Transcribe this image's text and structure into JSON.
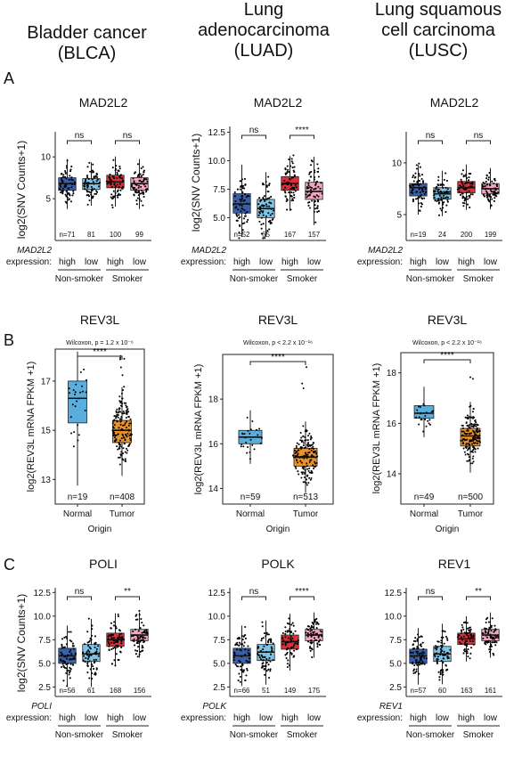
{
  "columns": [
    {
      "line1": "Bladder cancer",
      "line2": "(BLCA)",
      "line3": ""
    },
    {
      "line1": "Lung",
      "line2": "adenocarcinoma",
      "line3": "(LUAD)"
    },
    {
      "line1": "Lung squamous",
      "line2": "cell carcinoma",
      "line3": "(LUSC)"
    }
  ],
  "section_labels": [
    "A",
    "B",
    "C"
  ],
  "colors": {
    "nonsmoker_high": "#3a5fa8",
    "nonsmoker_low": "#7cc5e8",
    "smoker_high": "#d9313c",
    "smoker_low": "#f2a6bd",
    "normal": "#5aaede",
    "tumor": "#e8912f"
  },
  "section_A": {
    "ylabel": "log2(SNV Counts+1)",
    "gene_label": "expression:",
    "group_labels": [
      "Non-smoker",
      "Smoker"
    ],
    "levels": [
      "high",
      "low",
      "high",
      "low"
    ],
    "panels": [
      {
        "title": "MAD2L2",
        "gene": "MAD2L2",
        "counts": [
          "n=71",
          "81",
          "100",
          "99"
        ],
        "sig": [
          "ns",
          "ns"
        ],
        "yticks": [
          "5",
          "10"
        ]
      },
      {
        "title": "MAD2L2",
        "gene": "MAD2L2",
        "counts": [
          "n=52",
          "65",
          "167",
          "157"
        ],
        "sig": [
          "ns",
          "****"
        ],
        "yticks": [
          "5.0",
          "7.5",
          "10.0",
          "12.5"
        ]
      },
      {
        "title": "MAD2L2",
        "gene": "MAD2L2",
        "counts": [
          "n=19",
          "24",
          "200",
          "199"
        ],
        "sig": [
          "ns",
          "ns"
        ],
        "yticks": [
          "5",
          "10"
        ]
      }
    ]
  },
  "section_B": {
    "ylabel": "log2(REV3L mRNA FPKM +1)",
    "xlabel": "Origin",
    "categories": [
      "Normal",
      "Tumor"
    ],
    "panels": [
      {
        "title": "REV3L",
        "stat": "Wilcoxon, p = 1.2 x 10⁻⁶",
        "sig": "****",
        "counts": [
          "n=19",
          "n=408"
        ],
        "yticks": [
          "13",
          "15",
          "17"
        ]
      },
      {
        "title": "REV3L",
        "stat": "Wilcoxon, p < 2.2 x 10⁻¹⁶",
        "sig": "****",
        "counts": [
          "n=59",
          "n=513"
        ],
        "yticks": [
          "14",
          "16",
          "18"
        ]
      },
      {
        "title": "REV3L",
        "stat": "Wilcoxon, p < 2.2 x 10⁻¹⁶",
        "sig": "****",
        "counts": [
          "n=49",
          "n=500"
        ],
        "yticks": [
          "14",
          "16",
          "18"
        ]
      }
    ]
  },
  "section_C": {
    "ylabel": "log2(SNV Counts+1)",
    "gene_label": "expression:",
    "group_labels": [
      "Non-smoker",
      "Smoker"
    ],
    "levels": [
      "high",
      "low",
      "high",
      "low"
    ],
    "panels": [
      {
        "title": "POLI",
        "gene": "POLI",
        "counts": [
          "n=56",
          "61",
          "168",
          "156"
        ],
        "sig": [
          "ns",
          "**"
        ],
        "yticks": [
          "2.5",
          "5.0",
          "7.5",
          "10.0",
          "12.5"
        ]
      },
      {
        "title": "POLK",
        "gene": "POLK",
        "counts": [
          "n=66",
          "51",
          "149",
          "175"
        ],
        "sig": [
          "ns",
          "****"
        ],
        "yticks": [
          "2.5",
          "5.0",
          "7.5",
          "10.0",
          "12.5"
        ]
      },
      {
        "title": "REV1",
        "gene": "REV1",
        "counts": [
          "n=57",
          "60",
          "163",
          "161"
        ],
        "sig": [
          "ns",
          "**"
        ],
        "yticks": [
          "2.5",
          "5.0",
          "7.5",
          "10.0",
          "12.5"
        ]
      }
    ]
  },
  "chart_data": [
    {
      "type": "box",
      "panel": "A1",
      "title": "MAD2L2",
      "ylabel": "log2(SNV Counts+1)",
      "categories": [
        "Non-smoker high",
        "Non-smoker low",
        "Smoker high",
        "Smoker low"
      ],
      "ylim": [
        0,
        13
      ],
      "medians": [
        6.8,
        6.8,
        7.0,
        6.8
      ],
      "q1": [
        6.0,
        6.1,
        6.3,
        6.0
      ],
      "q3": [
        7.5,
        7.4,
        7.8,
        7.5
      ]
    },
    {
      "type": "box",
      "panel": "A2",
      "title": "MAD2L2",
      "ylabel": "log2(SNV Counts+1)",
      "categories": [
        "Non-smoker high",
        "Non-smoker low",
        "Smoker high",
        "Smoker low"
      ],
      "ylim": [
        3,
        13
      ],
      "medians": [
        6.2,
        5.8,
        8.0,
        7.3
      ],
      "q1": [
        5.4,
        5.0,
        7.4,
        6.6
      ],
      "q3": [
        7.1,
        6.6,
        8.6,
        8.1
      ]
    },
    {
      "type": "box",
      "panel": "A3",
      "title": "MAD2L2",
      "ylabel": "log2(SNV Counts+1)",
      "categories": [
        "Non-smoker high",
        "Non-smoker low",
        "Smoker high",
        "Smoker low"
      ],
      "ylim": [
        2.5,
        13
      ],
      "medians": [
        7.6,
        7.0,
        7.6,
        7.5
      ],
      "q1": [
        6.8,
        6.5,
        7.1,
        7.0
      ],
      "q3": [
        8.0,
        7.6,
        8.2,
        8.0
      ]
    },
    {
      "type": "box",
      "panel": "B1",
      "title": "REV3L",
      "ylabel": "log2(REV3L mRNA FPKM +1)",
      "xlabel": "Origin",
      "categories": [
        "Normal",
        "Tumor"
      ],
      "ylim": [
        12,
        18.3
      ],
      "medians": [
        16.3,
        15.0
      ],
      "q1": [
        15.3,
        14.5
      ],
      "q3": [
        17.0,
        15.4
      ]
    },
    {
      "type": "box",
      "panel": "B2",
      "title": "REV3L",
      "ylabel": "log2(REV3L mRNA FPKM +1)",
      "xlabel": "Origin",
      "categories": [
        "Normal",
        "Tumor"
      ],
      "ylim": [
        13.3,
        20
      ],
      "medians": [
        16.3,
        15.4
      ],
      "q1": [
        16.0,
        15.0
      ],
      "q3": [
        16.6,
        15.8
      ]
    },
    {
      "type": "box",
      "panel": "B3",
      "title": "REV3L",
      "ylabel": "log2(REV3L mRNA FPKM +1)",
      "xlabel": "Origin",
      "categories": [
        "Normal",
        "Tumor"
      ],
      "ylim": [
        12.8,
        18.8
      ],
      "medians": [
        16.4,
        15.5
      ],
      "q1": [
        16.2,
        15.1
      ],
      "q3": [
        16.7,
        15.8
      ]
    },
    {
      "type": "box",
      "panel": "C1",
      "title": "POLI",
      "ylabel": "log2(SNV Counts+1)",
      "categories": [
        "Non-smoker high",
        "Non-smoker low",
        "Smoker high",
        "Smoker low"
      ],
      "ylim": [
        1.5,
        13
      ],
      "medians": [
        5.8,
        6.0,
        7.5,
        8.0
      ],
      "q1": [
        5.0,
        5.2,
        6.8,
        7.4
      ],
      "q3": [
        6.6,
        7.0,
        8.2,
        8.6
      ]
    },
    {
      "type": "box",
      "panel": "C2",
      "title": "POLK",
      "ylabel": "log2(SNV Counts+1)",
      "categories": [
        "Non-smoker high",
        "Non-smoker low",
        "Smoker high",
        "Smoker low"
      ],
      "ylim": [
        1.5,
        13
      ],
      "medians": [
        5.8,
        6.2,
        7.3,
        8.0
      ],
      "q1": [
        5.0,
        5.3,
        6.5,
        7.4
      ],
      "q3": [
        6.6,
        7.0,
        8.0,
        8.6
      ]
    },
    {
      "type": "box",
      "panel": "C3",
      "title": "REV1",
      "ylabel": "log2(SNV Counts+1)",
      "categories": [
        "Non-smoker high",
        "Non-smoker low",
        "Smoker high",
        "Smoker low"
      ],
      "ylim": [
        1.5,
        13
      ],
      "medians": [
        5.8,
        6.0,
        7.6,
        8.0
      ],
      "q1": [
        5.0,
        5.2,
        7.0,
        7.4
      ],
      "q3": [
        6.5,
        6.8,
        8.2,
        8.6
      ]
    }
  ]
}
